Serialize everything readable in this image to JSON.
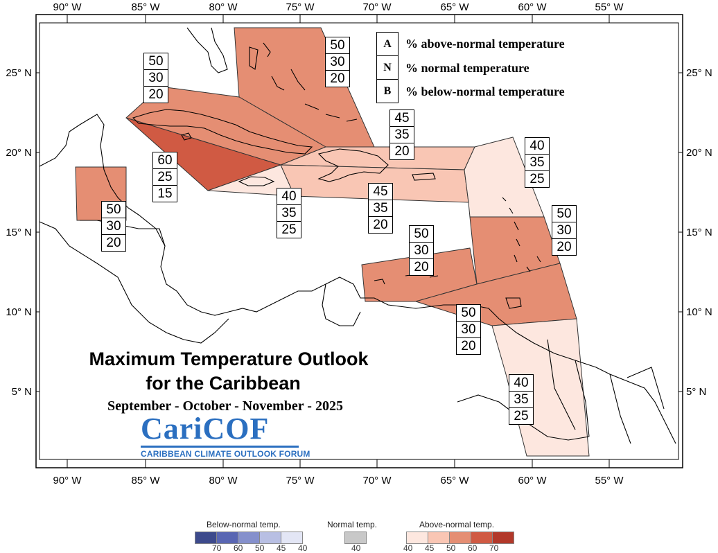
{
  "map": {
    "title_line1": "Maximum Temperature Outlook",
    "title_line2": "for the Caribbean",
    "season": "September - October - November - 2025",
    "longitudes": [
      "90° W",
      "85° W",
      "80° W",
      "75° W",
      "70° W",
      "65° W",
      "60° W",
      "55° W"
    ],
    "latitudes": [
      "25° N",
      "20° N",
      "15° N",
      "10° N",
      "5° N"
    ],
    "key": [
      {
        "letter": "A",
        "text": "% above-normal temperature"
      },
      {
        "letter": "N",
        "text": "% normal temperature"
      },
      {
        "letter": "B",
        "text": "% below-normal temperature"
      }
    ],
    "regions": [
      {
        "name": "bahamas",
        "A": "50",
        "N": "30",
        "B": "20",
        "category": "above",
        "level": 50,
        "color": "#e58e73"
      },
      {
        "name": "cuba",
        "A": "50",
        "N": "30",
        "B": "20",
        "category": "above",
        "level": 50,
        "color": "#e58e73"
      },
      {
        "name": "cayman-jamaica-west",
        "A": "60",
        "N": "25",
        "B": "15",
        "category": "above",
        "level": 60,
        "color": "#d05a43"
      },
      {
        "name": "belize",
        "A": "50",
        "N": "30",
        "B": "20",
        "category": "above",
        "level": 50,
        "color": "#e58e73"
      },
      {
        "name": "hispaniola-north",
        "A": "45",
        "N": "35",
        "B": "20",
        "category": "above",
        "level": 45,
        "color": "#f9c6b4"
      },
      {
        "name": "jamaica",
        "A": "40",
        "N": "35",
        "B": "25",
        "category": "above",
        "level": 40,
        "color": "#fde7df"
      },
      {
        "name": "hispaniola-south-puerto-rico",
        "A": "45",
        "N": "35",
        "B": "20",
        "category": "above",
        "level": 45,
        "color": "#f9c6b4"
      },
      {
        "name": "leeward-islands",
        "A": "40",
        "N": "35",
        "B": "25",
        "category": "above",
        "level": 40,
        "color": "#fde7df"
      },
      {
        "name": "windward-islands",
        "A": "50",
        "N": "30",
        "B": "20",
        "category": "above",
        "level": 50,
        "color": "#e58e73"
      },
      {
        "name": "abc-islands",
        "A": "50",
        "N": "30",
        "B": "20",
        "category": "above",
        "level": 50,
        "color": "#e58e73"
      },
      {
        "name": "trinidad-barbados",
        "A": "50",
        "N": "30",
        "B": "20",
        "category": "above",
        "level": 50,
        "color": "#e58e73"
      },
      {
        "name": "guianas",
        "A": "40",
        "N": "35",
        "B": "25",
        "category": "above",
        "level": 40,
        "color": "#fde7df"
      }
    ],
    "colorbar": {
      "below_title": "Below-normal temp.",
      "normal_title": "Normal temp.",
      "above_title": "Above-normal temp.",
      "below_colors": [
        "#3d4a8c",
        "#5966b3",
        "#8590cc",
        "#b8bfe3",
        "#e3e6f5"
      ],
      "below_labels": [
        "70",
        "60",
        "50",
        "45",
        "40"
      ],
      "normal_color": "#c8c8c8",
      "normal_label": "40",
      "above_colors": [
        "#fde7df",
        "#f9c6b4",
        "#e58e73",
        "#d05a43",
        "#b2382a"
      ],
      "above_labels": [
        "40",
        "45",
        "50",
        "60",
        "70"
      ]
    }
  },
  "logo": {
    "name": "CariCOF",
    "subtitle": "CARIBBEAN CLIMATE OUTLOOK FORUM"
  }
}
